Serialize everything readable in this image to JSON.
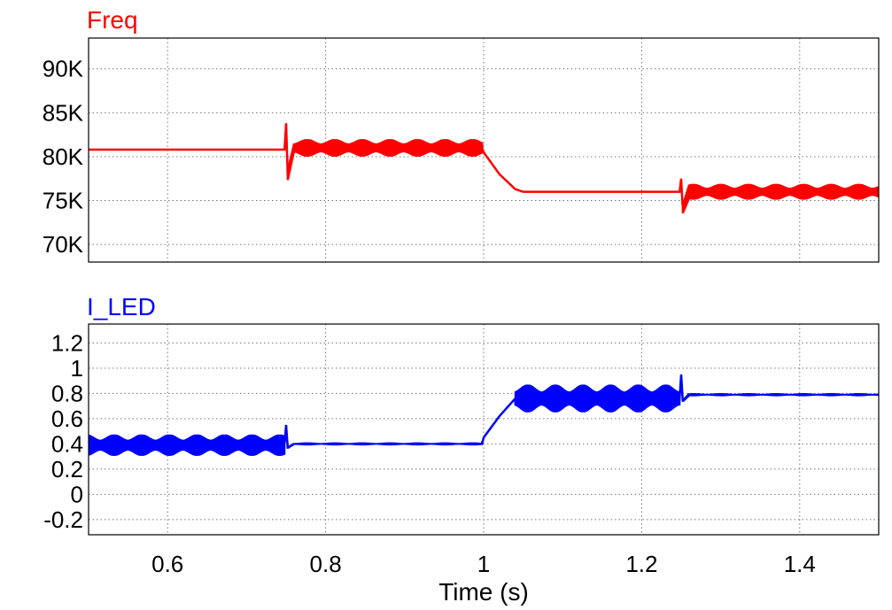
{
  "chart_data": [
    {
      "type": "line",
      "title": "Freq",
      "xlabel": "",
      "ylabel": "",
      "color": "#ff0000",
      "xlim": [
        0.5,
        1.5
      ],
      "ylim": [
        68000,
        93500
      ],
      "y_ticks": [
        70000,
        75000,
        80000,
        85000,
        90000
      ],
      "y_tick_labels": [
        "70K",
        "75K",
        "80K",
        "85K",
        "90K"
      ],
      "grid": true,
      "series": [
        {
          "name": "Freq",
          "x": [
            0.5,
            0.748,
            0.75,
            0.752,
            0.76,
            0.8,
            0.9,
            0.998,
            1.0,
            1.02,
            1.04,
            1.05,
            1.1,
            1.2,
            1.248,
            1.25,
            1.252,
            1.26,
            1.3,
            1.4,
            1.5
          ],
          "y": [
            80800,
            80800,
            83800,
            77900,
            81000,
            81000,
            81000,
            81000,
            80500,
            78000,
            76300,
            76000,
            76000,
            76000,
            76000,
            77500,
            74000,
            76000,
            76000,
            76000,
            76000
          ],
          "ripple": [
            [
              0.752,
              0.998,
              1000
            ],
            [
              1.252,
              1.5,
              900
            ]
          ]
        }
      ]
    },
    {
      "type": "line",
      "title": "I_LED",
      "xlabel": "Time (s)",
      "ylabel": "",
      "color": "#0000ff",
      "xlim": [
        0.5,
        1.5
      ],
      "ylim": [
        -0.32,
        1.35
      ],
      "y_ticks": [
        -0.2,
        0,
        0.2,
        0.4,
        0.6,
        0.8,
        1,
        1.2
      ],
      "y_tick_labels": [
        "-0.2",
        "0",
        "0.2",
        "0.4",
        "0.6",
        "0.8",
        "1",
        "1.2"
      ],
      "x_ticks": [
        0.6,
        0.8,
        1,
        1.2,
        1.4
      ],
      "x_tick_labels": [
        "0.6",
        "0.8",
        "1",
        "1.2",
        "1.4"
      ],
      "grid": true,
      "series": [
        {
          "name": "I_LED",
          "x": [
            0.5,
            0.748,
            0.75,
            0.752,
            0.76,
            0.8,
            0.9,
            0.998,
            1.0,
            1.02,
            1.04,
            1.05,
            1.1,
            1.2,
            1.248,
            1.25,
            1.252,
            1.26,
            1.3,
            1.4,
            1.5
          ],
          "y": [
            0.39,
            0.39,
            0.55,
            0.37,
            0.4,
            0.4,
            0.4,
            0.4,
            0.45,
            0.62,
            0.76,
            0.76,
            0.76,
            0.76,
            0.76,
            0.95,
            0.74,
            0.79,
            0.79,
            0.79,
            0.79
          ],
          "ripple": [
            [
              0.5,
              0.748,
              0.085
            ],
            [
              0.752,
              0.998,
              0.012
            ],
            [
              1.04,
              1.248,
              0.11
            ],
            [
              1.252,
              1.5,
              0.012
            ]
          ]
        }
      ]
    }
  ]
}
